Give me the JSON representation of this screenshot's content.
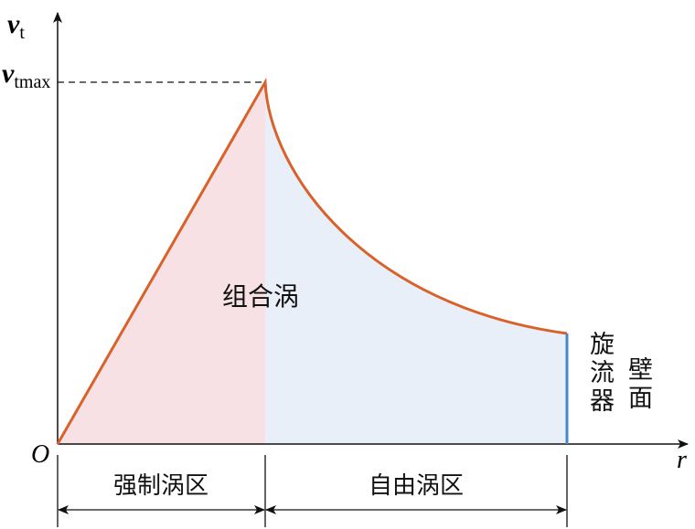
{
  "axes": {
    "y_label": {
      "main": "v",
      "sub": "t"
    },
    "ymax_label": {
      "main": "v",
      "sub": "tmax"
    },
    "origin": "O",
    "x_label": "r"
  },
  "center_label": "组合涡",
  "zones": [
    "强制涡区",
    "自由涡区"
  ],
  "wall_label": [
    "旋流器",
    "壁面"
  ]
}
